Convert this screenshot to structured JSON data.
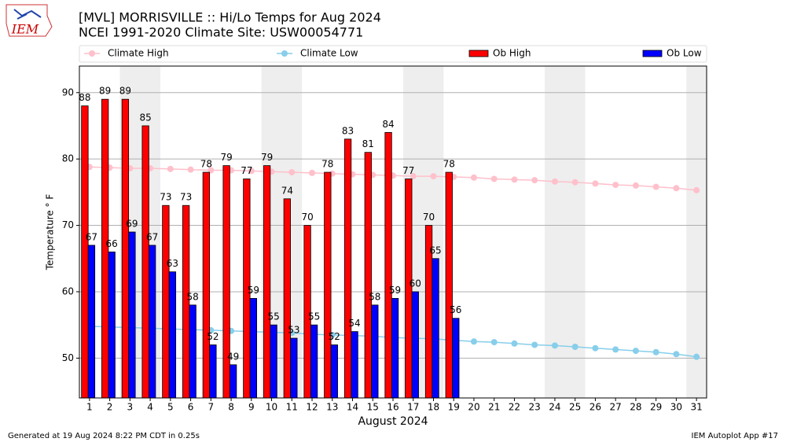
{
  "chart_data": {
    "type": "bar",
    "title": "[MVL] MORRISVILLE :: Hi/Lo Temps for Aug 2024",
    "subtitle": "NCEI 1991-2020 Climate Site: USW00054771",
    "logo_text": "IEM",
    "x_label": "August 2024",
    "y_label": "Temperature ° F",
    "footer_left": "Generated at 19 Aug 2024 8:22 PM CDT in 0.25s",
    "footer_right": "IEM Autoplot App #17",
    "x": [
      1,
      2,
      3,
      4,
      5,
      6,
      7,
      8,
      9,
      10,
      11,
      12,
      13,
      14,
      15,
      16,
      17,
      18,
      19,
      20,
      21,
      22,
      23,
      24,
      25,
      26,
      27,
      28,
      29,
      30,
      31
    ],
    "xlim": [
      0.5,
      31.5
    ],
    "xticks": [
      1,
      2,
      3,
      4,
      5,
      6,
      7,
      8,
      9,
      10,
      11,
      12,
      13,
      14,
      15,
      16,
      17,
      18,
      19,
      20,
      21,
      22,
      23,
      24,
      25,
      26,
      27,
      28,
      29,
      30,
      31
    ],
    "ylim": [
      44,
      94
    ],
    "yticks": [
      50,
      60,
      70,
      80,
      90
    ],
    "grid": true,
    "series": [
      {
        "name": "Climate High",
        "type": "line",
        "color": "#ffc0cb",
        "values": [
          78.8,
          78.7,
          78.6,
          78.6,
          78.5,
          78.4,
          78.3,
          78.3,
          78.2,
          78.1,
          78.0,
          77.9,
          77.8,
          77.7,
          77.6,
          77.5,
          77.4,
          77.4,
          77.3,
          77.2,
          77.0,
          76.9,
          76.8,
          76.6,
          76.5,
          76.3,
          76.1,
          76.0,
          75.8,
          75.6,
          75.3
        ]
      },
      {
        "name": "Climate Low",
        "type": "line",
        "color": "#87ceeb",
        "values": [
          54.8,
          54.7,
          54.6,
          54.5,
          54.4,
          54.3,
          54.2,
          54.1,
          54.0,
          53.9,
          53.8,
          53.6,
          53.5,
          53.4,
          53.3,
          53.1,
          53.0,
          52.9,
          52.7,
          52.5,
          52.4,
          52.2,
          52.0,
          51.9,
          51.7,
          51.5,
          51.3,
          51.1,
          50.9,
          50.6,
          50.2
        ]
      },
      {
        "name": "Ob High",
        "type": "bar",
        "color": "#ff0000",
        "values": [
          88,
          89,
          89,
          85,
          73,
          73,
          78,
          79,
          77,
          79,
          74,
          70,
          78,
          83,
          81,
          84,
          77,
          70,
          78,
          null,
          null,
          null,
          null,
          null,
          null,
          null,
          null,
          null,
          null,
          null,
          null
        ]
      },
      {
        "name": "Ob Low",
        "type": "bar",
        "color": "#0000ff",
        "values": [
          67,
          66,
          69,
          67,
          63,
          58,
          52,
          49,
          59,
          55,
          53,
          55,
          52,
          54,
          58,
          59,
          60,
          65,
          56,
          null,
          null,
          null,
          null,
          null,
          null,
          null,
          null,
          null,
          null,
          null,
          null
        ]
      }
    ]
  }
}
